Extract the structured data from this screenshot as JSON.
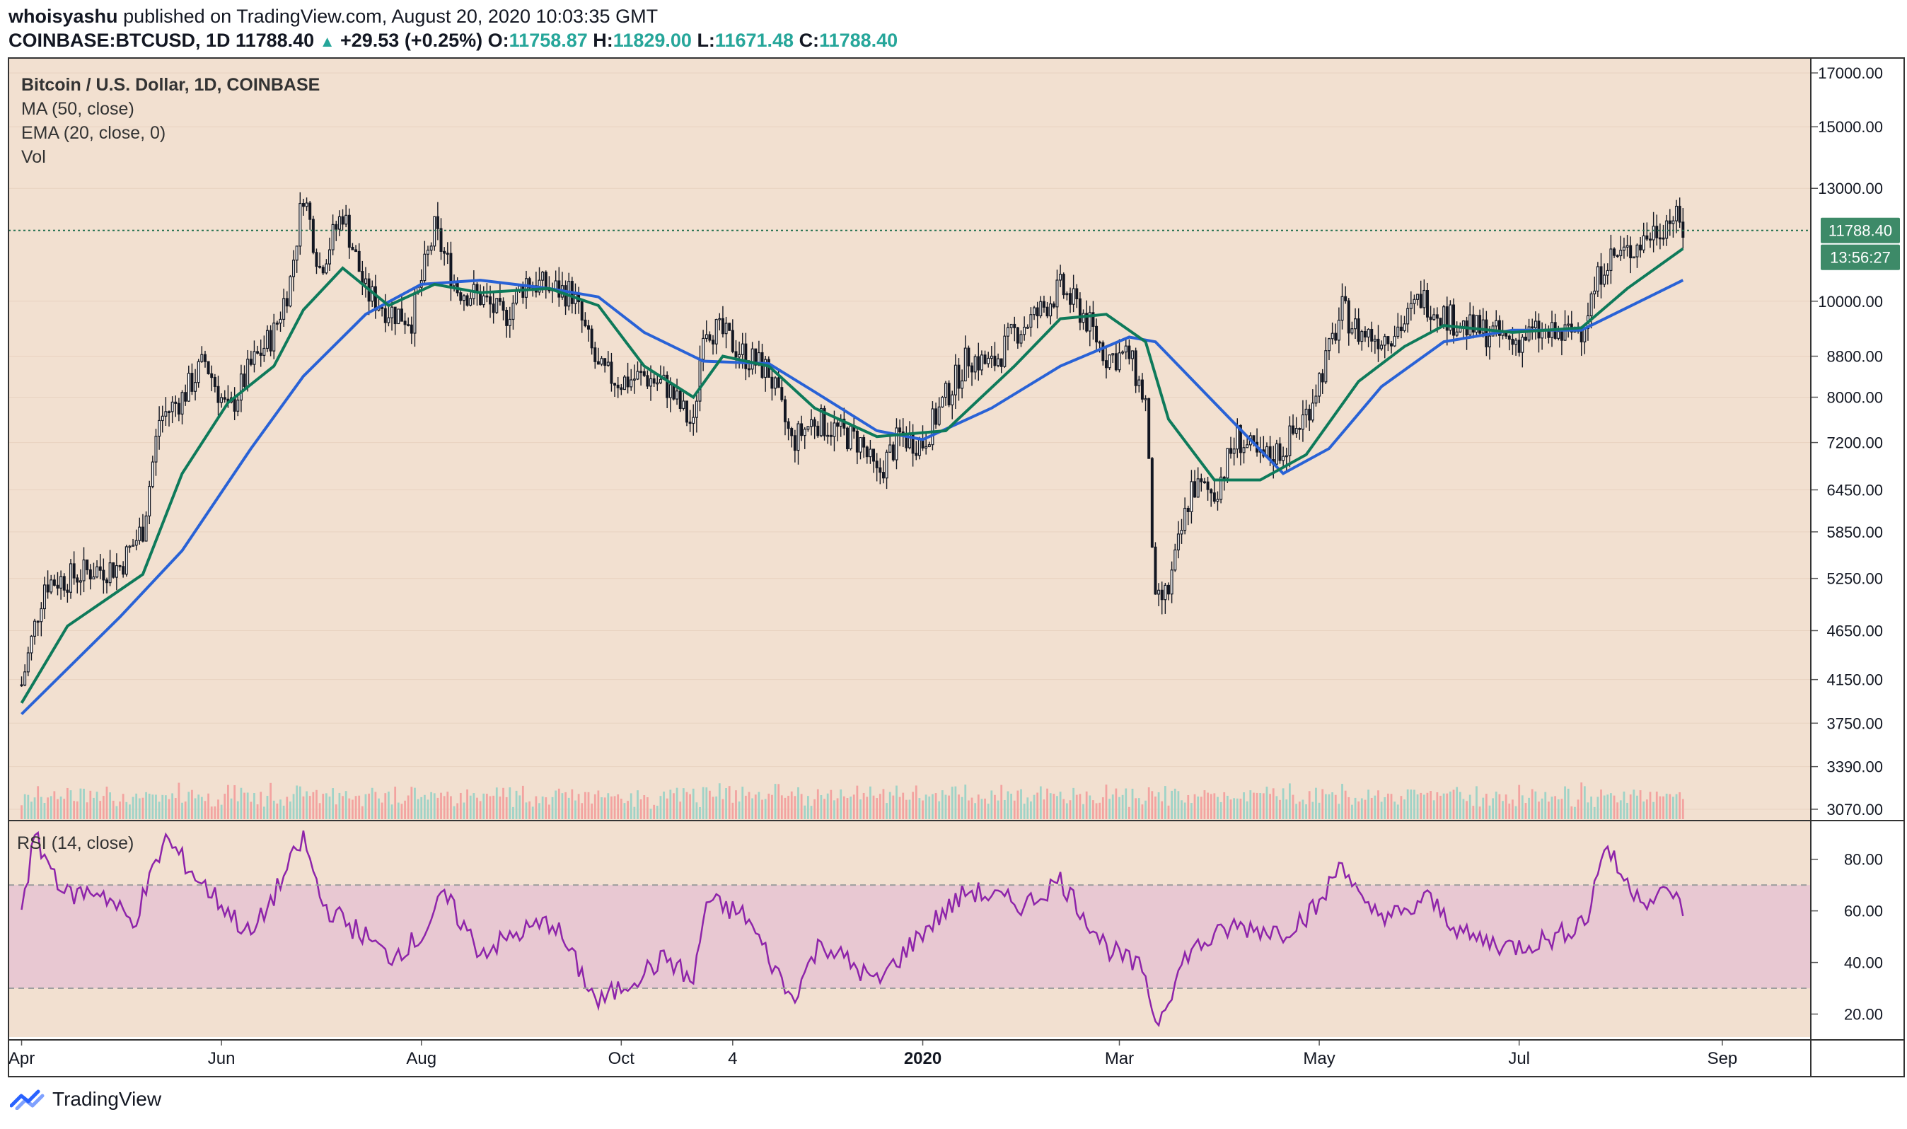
{
  "header": {
    "author": "whoisyashu",
    "published": "published on TradingView.com, August 20, 2020 10:03:35 GMT",
    "symbol": "COINBASE:BTCUSD, 1D",
    "last": "11788.40",
    "change": "+29.53 (+0.25%)",
    "open_label": "O:",
    "open": "11758.87",
    "high_label": "H:",
    "high": "11829.00",
    "low_label": "L:",
    "low": "11671.48",
    "close_label": "C:",
    "close": "11788.40"
  },
  "legend": {
    "title": "Bitcoin / U.S. Dollar, 1D, COINBASE",
    "ma": "MA (50, close)",
    "ema": "EMA (20, close, 0)",
    "vol": "Vol",
    "rsi": "RSI (14, close)"
  },
  "price_badge": {
    "value": "11788.40",
    "countdown": "13:56:27"
  },
  "colors": {
    "background": "#f2e0d0",
    "up": "#26a69a",
    "down": "#ef5350",
    "candle": "#131722",
    "ma": "#2962d6",
    "ema": "#0e7a5a",
    "rsi": "#8e24aa",
    "rsi_band": "#e8c8d2"
  },
  "footer": {
    "brand": "TradingView"
  },
  "chart_data": [
    {
      "type": "candlestick",
      "title": "Bitcoin / U.S. Dollar, 1D, COINBASE",
      "x_tick_labels": [
        "Apr",
        "Jun",
        "Aug",
        "Oct",
        "4",
        "2020",
        "Mar",
        "May",
        "Jul",
        "Sep"
      ],
      "y_tick_labels": [
        "17000.00",
        "15000.00",
        "13000.00",
        "10000.00",
        "8800.00",
        "8000.00",
        "7200.00",
        "6450.00",
        "5850.00",
        "5250.00",
        "4650.00",
        "4150.00",
        "3750.00",
        "3390.00",
        "3070.00"
      ],
      "ylim": [
        3000,
        17600
      ],
      "y_scale": "log",
      "last_price": 11788.4,
      "series": [
        {
          "name": "BTCUSD close",
          "points": [
            [
              "2019-04-01",
              4100
            ],
            [
              "2019-04-08",
              5200
            ],
            [
              "2019-04-15",
              5250
            ],
            [
              "2019-04-22",
              5350
            ],
            [
              "2019-05-01",
              5400
            ],
            [
              "2019-05-08",
              5900
            ],
            [
              "2019-05-13",
              7600
            ],
            [
              "2019-05-20",
              8000
            ],
            [
              "2019-05-27",
              8700
            ],
            [
              "2019-06-03",
              7700
            ],
            [
              "2019-06-10",
              8600
            ],
            [
              "2019-06-17",
              9300
            ],
            [
              "2019-06-22",
              10500
            ],
            [
              "2019-06-26",
              12900
            ],
            [
              "2019-07-01",
              10800
            ],
            [
              "2019-07-08",
              12300
            ],
            [
              "2019-07-15",
              10200
            ],
            [
              "2019-07-22",
              9800
            ],
            [
              "2019-07-29",
              9600
            ],
            [
              "2019-08-05",
              11800
            ],
            [
              "2019-08-12",
              10300
            ],
            [
              "2019-08-19",
              10100
            ],
            [
              "2019-08-26",
              9600
            ],
            [
              "2019-09-02",
              10500
            ],
            [
              "2019-09-09",
              10300
            ],
            [
              "2019-09-16",
              10200
            ],
            [
              "2019-09-24",
              8500
            ],
            [
              "2019-10-01",
              8300
            ],
            [
              "2019-10-08",
              8400
            ],
            [
              "2019-10-15",
              8200
            ],
            [
              "2019-10-23",
              7450
            ],
            [
              "2019-10-26",
              9500
            ],
            [
              "2019-11-01",
              9250
            ],
            [
              "2019-11-08",
              8800
            ],
            [
              "2019-11-15",
              8500
            ],
            [
              "2019-11-22",
              7200
            ],
            [
              "2019-11-29",
              7600
            ],
            [
              "2019-12-06",
              7400
            ],
            [
              "2019-12-13",
              7200
            ],
            [
              "2019-12-18",
              6650
            ],
            [
              "2019-12-25",
              7300
            ],
            [
              "2020-01-01",
              7200
            ],
            [
              "2020-01-08",
              8000
            ],
            [
              "2020-01-15",
              8800
            ],
            [
              "2020-01-22",
              8600
            ],
            [
              "2020-01-29",
              9300
            ],
            [
              "2020-02-05",
              9700
            ],
            [
              "2020-02-12",
              10300
            ],
            [
              "2020-02-19",
              9700
            ],
            [
              "2020-02-26",
              8800
            ],
            [
              "2020-03-04",
              8800
            ],
            [
              "2020-03-09",
              7900
            ],
            [
              "2020-03-12",
              4900
            ],
            [
              "2020-03-16",
              5100
            ],
            [
              "2020-03-23",
              6500
            ],
            [
              "2020-03-30",
              6400
            ],
            [
              "2020-04-06",
              7300
            ],
            [
              "2020-04-13",
              6900
            ],
            [
              "2020-04-20",
              7100
            ],
            [
              "2020-04-27",
              7700
            ],
            [
              "2020-05-04",
              8900
            ],
            [
              "2020-05-08",
              9800
            ],
            [
              "2020-05-13",
              9300
            ],
            [
              "2020-05-20",
              9200
            ],
            [
              "2020-05-27",
              9500
            ],
            [
              "2020-06-01",
              10100
            ],
            [
              "2020-06-08",
              9700
            ],
            [
              "2020-06-15",
              9400
            ],
            [
              "2020-06-22",
              9300
            ],
            [
              "2020-06-29",
              9100
            ],
            [
              "2020-07-06",
              9300
            ],
            [
              "2020-07-13",
              9200
            ],
            [
              "2020-07-20",
              9400
            ],
            [
              "2020-07-27",
              11000
            ],
            [
              "2020-08-03",
              11200
            ],
            [
              "2020-08-10",
              11700
            ],
            [
              "2020-08-17",
              12200
            ],
            [
              "2020-08-20",
              11788.4
            ]
          ]
        },
        {
          "name": "MA (50, close)",
          "points": [
            [
              "2019-04-01",
              3830
            ],
            [
              "2019-05-01",
              4800
            ],
            [
              "2019-05-20",
              5600
            ],
            [
              "2019-06-10",
              7100
            ],
            [
              "2019-06-26",
              8400
            ],
            [
              "2019-07-15",
              9700
            ],
            [
              "2019-08-01",
              10400
            ],
            [
              "2019-08-19",
              10500
            ],
            [
              "2019-09-09",
              10300
            ],
            [
              "2019-09-24",
              10100
            ],
            [
              "2019-10-08",
              9300
            ],
            [
              "2019-10-26",
              8700
            ],
            [
              "2019-11-15",
              8650
            ],
            [
              "2019-11-29",
              8100
            ],
            [
              "2019-12-18",
              7400
            ],
            [
              "2020-01-01",
              7250
            ],
            [
              "2020-01-22",
              7800
            ],
            [
              "2020-02-12",
              8600
            ],
            [
              "2020-03-04",
              9200
            ],
            [
              "2020-03-12",
              9100
            ],
            [
              "2020-03-30",
              7900
            ],
            [
              "2020-04-20",
              6700
            ],
            [
              "2020-05-04",
              7100
            ],
            [
              "2020-05-20",
              8200
            ],
            [
              "2020-06-08",
              9100
            ],
            [
              "2020-06-29",
              9350
            ],
            [
              "2020-07-20",
              9350
            ],
            [
              "2020-08-20",
              10500
            ]
          ]
        },
        {
          "name": "EMA (20, close, 0)",
          "points": [
            [
              "2019-04-01",
              3930
            ],
            [
              "2019-04-15",
              4700
            ],
            [
              "2019-05-08",
              5300
            ],
            [
              "2019-05-20",
              6700
            ],
            [
              "2019-06-03",
              7900
            ],
            [
              "2019-06-17",
              8600
            ],
            [
              "2019-06-26",
              9800
            ],
            [
              "2019-07-08",
              10800
            ],
            [
              "2019-07-22",
              9900
            ],
            [
              "2019-08-05",
              10400
            ],
            [
              "2019-08-19",
              10200
            ],
            [
              "2019-09-09",
              10300
            ],
            [
              "2019-09-24",
              9900
            ],
            [
              "2019-10-08",
              8600
            ],
            [
              "2019-10-23",
              8000
            ],
            [
              "2019-11-01",
              8800
            ],
            [
              "2019-11-15",
              8600
            ],
            [
              "2019-11-29",
              7800
            ],
            [
              "2019-12-18",
              7300
            ],
            [
              "2020-01-08",
              7400
            ],
            [
              "2020-01-29",
              8600
            ],
            [
              "2020-02-12",
              9600
            ],
            [
              "2020-02-26",
              9700
            ],
            [
              "2020-03-09",
              9100
            ],
            [
              "2020-03-16",
              7600
            ],
            [
              "2020-03-30",
              6600
            ],
            [
              "2020-04-13",
              6600
            ],
            [
              "2020-04-27",
              7000
            ],
            [
              "2020-05-13",
              8300
            ],
            [
              "2020-05-27",
              9000
            ],
            [
              "2020-06-08",
              9450
            ],
            [
              "2020-06-29",
              9300
            ],
            [
              "2020-07-20",
              9400
            ],
            [
              "2020-08-03",
              10300
            ],
            [
              "2020-08-20",
              11300
            ]
          ]
        }
      ]
    },
    {
      "type": "line",
      "title": "RSI (14, close)",
      "ylim": [
        10,
        95
      ],
      "y_tick_labels": [
        "80.00",
        "60.00",
        "40.00",
        "20.00"
      ],
      "bands": [
        30,
        70
      ],
      "series": [
        {
          "name": "RSI (14, close)",
          "points": [
            [
              "2019-04-01",
              62
            ],
            [
              "2019-04-05",
              88
            ],
            [
              "2019-04-15",
              66
            ],
            [
              "2019-04-25",
              68
            ],
            [
              "2019-05-05",
              55
            ],
            [
              "2019-05-15",
              88
            ],
            [
              "2019-05-25",
              72
            ],
            [
              "2019-06-03",
              60
            ],
            [
              "2019-06-10",
              50
            ],
            [
              "2019-06-17",
              66
            ],
            [
              "2019-06-26",
              88
            ],
            [
              "2019-07-02",
              62
            ],
            [
              "2019-07-15",
              50
            ],
            [
              "2019-07-22",
              42
            ],
            [
              "2019-08-01",
              50
            ],
            [
              "2019-08-08",
              66
            ],
            [
              "2019-08-19",
              44
            ],
            [
              "2019-09-01",
              52
            ],
            [
              "2019-09-10",
              56
            ],
            [
              "2019-09-24",
              24
            ],
            [
              "2019-10-05",
              34
            ],
            [
              "2019-10-15",
              42
            ],
            [
              "2019-10-23",
              32
            ],
            [
              "2019-10-27",
              64
            ],
            [
              "2019-11-08",
              58
            ],
            [
              "2019-11-22",
              26
            ],
            [
              "2019-12-01",
              48
            ],
            [
              "2019-12-18",
              32
            ],
            [
              "2020-01-01",
              52
            ],
            [
              "2020-01-15",
              68
            ],
            [
              "2020-02-01",
              62
            ],
            [
              "2020-02-12",
              72
            ],
            [
              "2020-02-26",
              46
            ],
            [
              "2020-03-09",
              36
            ],
            [
              "2020-03-12",
              16
            ],
            [
              "2020-03-22",
              44
            ],
            [
              "2020-04-05",
              54
            ],
            [
              "2020-04-20",
              52
            ],
            [
              "2020-05-01",
              62
            ],
            [
              "2020-05-08",
              80
            ],
            [
              "2020-05-15",
              60
            ],
            [
              "2020-05-28",
              58
            ],
            [
              "2020-06-02",
              66
            ],
            [
              "2020-06-15",
              50
            ],
            [
              "2020-06-29",
              46
            ],
            [
              "2020-07-13",
              50
            ],
            [
              "2020-07-22",
              58
            ],
            [
              "2020-07-27",
              86
            ],
            [
              "2020-08-03",
              70
            ],
            [
              "2020-08-10",
              64
            ],
            [
              "2020-08-17",
              68
            ],
            [
              "2020-08-20",
              58
            ]
          ]
        }
      ]
    },
    {
      "type": "bar",
      "title": "Vol",
      "series": [
        {
          "name": "Vol",
          "values": []
        }
      ]
    }
  ]
}
